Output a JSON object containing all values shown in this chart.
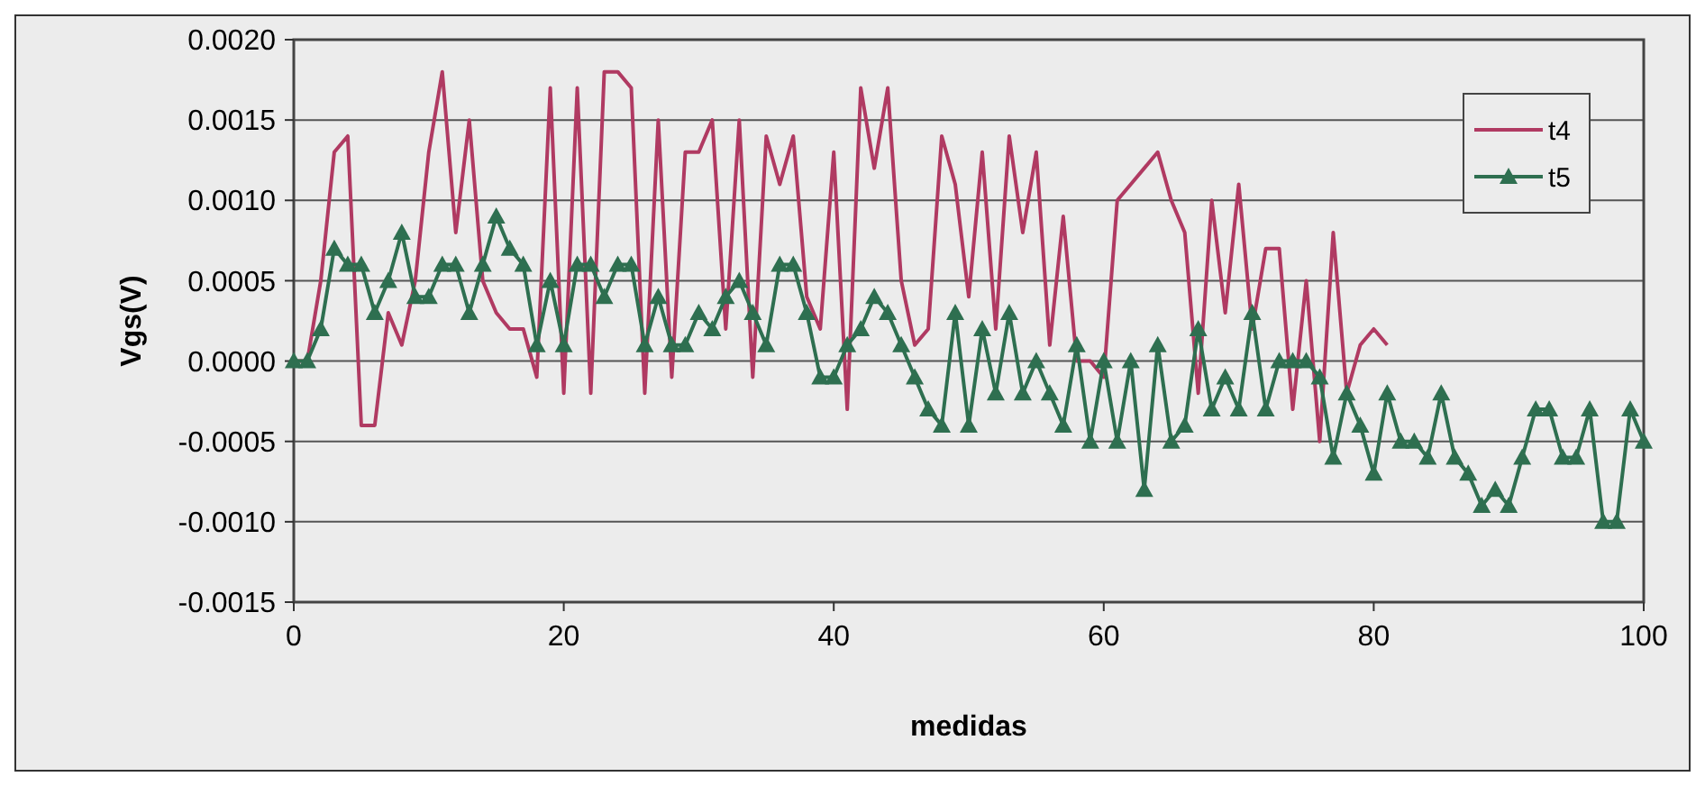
{
  "chart_data": {
    "type": "line",
    "xlabel": "medidas",
    "ylabel": "Vgs(V)",
    "xlim": [
      0,
      100
    ],
    "xticks": [
      0,
      20,
      40,
      60,
      80,
      100
    ],
    "ylim": [
      -0.0015,
      0.002
    ],
    "yticks": [
      {
        "value": -0.0015,
        "label": "-0.0015"
      },
      {
        "value": -0.001,
        "label": "-0.0010"
      },
      {
        "value": -0.0005,
        "label": "-0.0005"
      },
      {
        "value": 0,
        "label": "0.0000"
      },
      {
        "value": 0.0005,
        "label": "0.0005"
      },
      {
        "value": 0.001,
        "label": "0.0010"
      },
      {
        "value": 0.0015,
        "label": "0.0015"
      },
      {
        "value": 0.002,
        "label": "0.0020"
      }
    ],
    "grid": "y",
    "legend": "top right",
    "line_style": "solid",
    "series": [
      {
        "name": "t4",
        "color": "#b03a62",
        "marker": "none",
        "x": [
          0,
          1,
          2,
          3,
          4,
          5,
          6,
          7,
          8,
          9,
          10,
          11,
          12,
          13,
          14,
          15,
          16,
          17,
          18,
          19,
          20,
          21,
          22,
          23,
          24,
          25,
          26,
          27,
          28,
          29,
          30,
          31,
          32,
          33,
          34,
          35,
          36,
          37,
          38,
          39,
          40,
          41,
          42,
          43,
          44,
          45,
          46,
          47,
          48,
          49,
          50,
          51,
          52,
          53,
          54,
          55,
          56,
          57,
          58,
          59,
          60,
          61,
          62,
          63,
          64,
          65,
          66,
          67,
          68,
          69,
          70,
          71,
          72,
          73,
          74,
          75,
          76,
          77,
          78,
          79,
          80,
          81
        ],
        "values": [
          0,
          0,
          0.0005,
          0.0013,
          0.0014,
          -0.0004,
          -0.0004,
          0.0003,
          0.0001,
          0.0005,
          0.0013,
          0.0018,
          0.0008,
          0.0015,
          0.0005,
          0.0003,
          0.0002,
          0.0002,
          -0.0001,
          0.0017,
          -0.0002,
          0.0017,
          -0.0002,
          0.0018,
          0.0018,
          0.0017,
          -0.0002,
          0.0015,
          -0.0001,
          0.0013,
          0.0013,
          0.0015,
          0.0002,
          0.0015,
          -0.0001,
          0.0014,
          0.0011,
          0.0014,
          0.0004,
          0.0002,
          0.0013,
          -0.0003,
          0.0017,
          0.0012,
          0.0017,
          0.0005,
          0.0001,
          0.0002,
          0.0014,
          0.0011,
          0.0004,
          0.0013,
          0.0002,
          0.0014,
          0.0008,
          0.0013,
          0.0001,
          0.0009,
          0,
          0,
          -0.0001,
          0.001,
          0.0011,
          0.0012,
          0.0013,
          0.001,
          0.0008,
          -0.0002,
          0.001,
          0.0003,
          0.0011,
          0.0002,
          0.0007,
          0.0007,
          -0.0003,
          0.0005,
          -0.0005,
          0.0008,
          -0.0002,
          0.0001,
          0.0002,
          0.0001
        ]
      },
      {
        "name": "t5",
        "color": "#2e6f50",
        "marker": "triangle",
        "x": [
          0,
          1,
          2,
          3,
          4,
          5,
          6,
          7,
          8,
          9,
          10,
          11,
          12,
          13,
          14,
          15,
          16,
          17,
          18,
          19,
          20,
          21,
          22,
          23,
          24,
          25,
          26,
          27,
          28,
          29,
          30,
          31,
          32,
          33,
          34,
          35,
          36,
          37,
          38,
          39,
          40,
          41,
          42,
          43,
          44,
          45,
          46,
          47,
          48,
          49,
          50,
          51,
          52,
          53,
          54,
          55,
          56,
          57,
          58,
          59,
          60,
          61,
          62,
          63,
          64,
          65,
          66,
          67,
          68,
          69,
          70,
          71,
          72,
          73,
          74,
          75,
          76,
          77,
          78,
          79,
          80,
          81,
          82,
          83,
          84,
          85,
          86,
          87,
          88,
          89,
          90,
          91,
          92,
          93,
          94,
          95,
          96,
          97,
          98,
          99,
          100
        ],
        "values": [
          0,
          0,
          0.0002,
          0.0007,
          0.0006,
          0.0006,
          0.0003,
          0.0005,
          0.0008,
          0.0004,
          0.0004,
          0.0006,
          0.0006,
          0.0003,
          0.0006,
          0.0009,
          0.0007,
          0.0006,
          0.0001,
          0.0005,
          0.0001,
          0.0006,
          0.0006,
          0.0004,
          0.0006,
          0.0006,
          0.0001,
          0.0004,
          0.0001,
          0.0001,
          0.0003,
          0.0002,
          0.0004,
          0.0005,
          0.0003,
          0.0001,
          0.0006,
          0.0006,
          0.0003,
          -0.0001,
          -0.0001,
          0.0001,
          0.0002,
          0.0004,
          0.0003,
          0.0001,
          -0.0001,
          -0.0003,
          -0.0004,
          0.0003,
          -0.0004,
          0.0002,
          -0.0002,
          0.0003,
          -0.0002,
          0,
          -0.0002,
          -0.0004,
          0.0001,
          -0.0005,
          0,
          -0.0005,
          0,
          -0.0008,
          0.0001,
          -0.0005,
          -0.0004,
          0.0002,
          -0.0003,
          -0.0001,
          -0.0003,
          0.0003,
          -0.0003,
          0,
          0,
          0,
          -0.0001,
          -0.0006,
          -0.0002,
          -0.0004,
          -0.0007,
          -0.0002,
          -0.0005,
          -0.0005,
          -0.0006,
          -0.0002,
          -0.0006,
          -0.0007,
          -0.0009,
          -0.0008,
          -0.0009,
          -0.0006,
          -0.0003,
          -0.0003,
          -0.0006,
          -0.0006,
          -0.0003,
          -0.001,
          -0.001,
          -0.0003,
          -0.0005
        ]
      }
    ]
  }
}
